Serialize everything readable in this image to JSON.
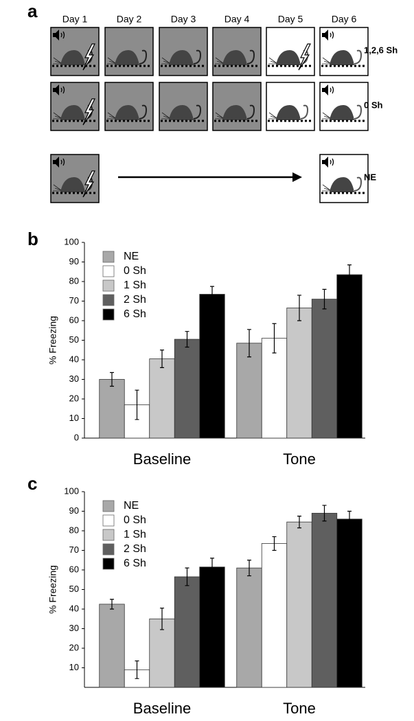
{
  "panel_labels": [
    "a",
    "b",
    "c"
  ],
  "diagram": {
    "days": [
      "Day 1",
      "Day 2",
      "Day 3",
      "Day 4",
      "Day 5",
      "Day 6"
    ],
    "rows": [
      {
        "label": "1,2,6 Sh"
      },
      {
        "label": "0 Sh"
      },
      {
        "label": "NE"
      }
    ]
  },
  "chart_data": [
    {
      "type": "bar",
      "y_label": "% Freezing",
      "categories": [
        "Baseline",
        "Tone"
      ],
      "ylim": [
        0,
        100
      ],
      "yticks": [
        0,
        10,
        20,
        30,
        40,
        50,
        60,
        70,
        80,
        90,
        100
      ],
      "series": [
        {
          "name": "NE",
          "color": "#a8a8a8",
          "values": [
            30,
            48.5
          ],
          "errors": [
            3.5,
            7
          ]
        },
        {
          "name": "0 Sh",
          "color": "#ffffff",
          "values": [
            17,
            51
          ],
          "errors": [
            7.5,
            7.5
          ]
        },
        {
          "name": "1 Sh",
          "color": "#c8c8c8",
          "values": [
            40.5,
            66.5
          ],
          "errors": [
            4.5,
            6.5
          ]
        },
        {
          "name": "2 Sh",
          "color": "#5f5f5f",
          "values": [
            50.5,
            71
          ],
          "errors": [
            4,
            5
          ]
        },
        {
          "name": "6 Sh",
          "color": "#000000",
          "values": [
            73.5,
            83.5
          ],
          "errors": [
            4,
            5
          ]
        }
      ]
    },
    {
      "type": "bar",
      "y_label": "% Freezing",
      "categories": [
        "Baseline",
        "Tone"
      ],
      "ylim": [
        0,
        100
      ],
      "yticks": [
        10,
        20,
        30,
        40,
        50,
        60,
        70,
        80,
        90,
        100
      ],
      "series": [
        {
          "name": "NE",
          "color": "#a8a8a8",
          "values": [
            42.5,
            61
          ],
          "errors": [
            2.5,
            4
          ]
        },
        {
          "name": "0 Sh",
          "color": "#ffffff",
          "values": [
            9,
            73.5
          ],
          "errors": [
            4.5,
            3.5
          ]
        },
        {
          "name": "1 Sh",
          "color": "#c8c8c8",
          "values": [
            35,
            84.5
          ],
          "errors": [
            5.5,
            3
          ]
        },
        {
          "name": "2 Sh",
          "color": "#5f5f5f",
          "values": [
            56.5,
            89
          ],
          "errors": [
            4.5,
            4
          ]
        },
        {
          "name": "6 Sh",
          "color": "#000000",
          "values": [
            61.5,
            86
          ],
          "errors": [
            4.5,
            4
          ]
        }
      ]
    }
  ]
}
